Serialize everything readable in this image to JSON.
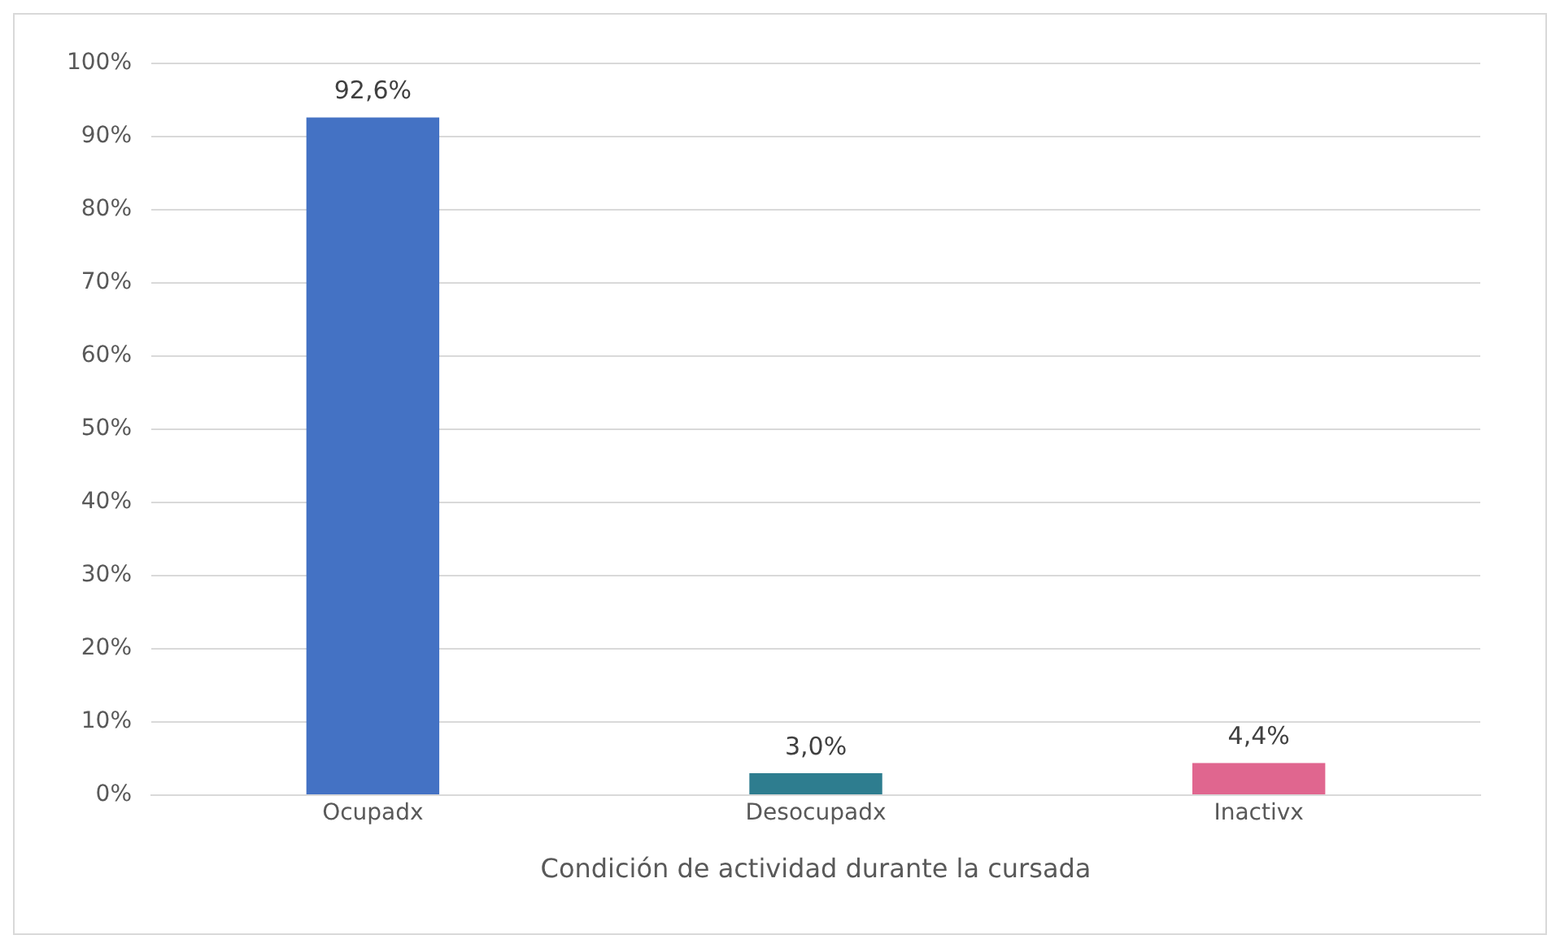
{
  "chart_data": {
    "type": "bar",
    "xlabel": "Condición de actividad durante la cursada",
    "categories": [
      "Ocupadx",
      "Desocupadx",
      "Inactivx"
    ],
    "values": [
      92.6,
      3.0,
      4.4
    ],
    "colors": [
      "#4472c4",
      "#2e7d8f",
      "#e0668f"
    ],
    "value_labels": [
      "92,6%",
      "3,0%",
      "4,4%"
    ],
    "ylim": [
      0,
      100
    ],
    "yticks": [
      {
        "value": 0,
        "label": "0%"
      },
      {
        "value": 10,
        "label": "10%"
      },
      {
        "value": 20,
        "label": "20%"
      },
      {
        "value": 30,
        "label": "30%"
      },
      {
        "value": 40,
        "label": "40%"
      },
      {
        "value": 50,
        "label": "50%"
      },
      {
        "value": 60,
        "label": "60%"
      },
      {
        "value": 70,
        "label": "70%"
      },
      {
        "value": 80,
        "label": "80%"
      },
      {
        "value": 90,
        "label": "90%"
      },
      {
        "value": 100,
        "label": "100%"
      }
    ],
    "grid": "y",
    "legend": false
  }
}
